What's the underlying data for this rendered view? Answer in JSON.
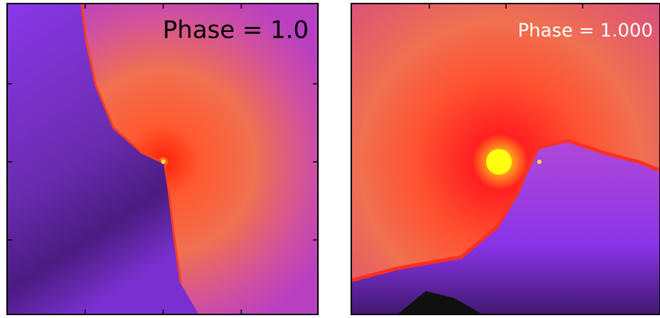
{
  "panels": [
    {
      "label": "Phase = 1.0"
    },
    {
      "label": "Phase = 1.000"
    }
  ]
}
